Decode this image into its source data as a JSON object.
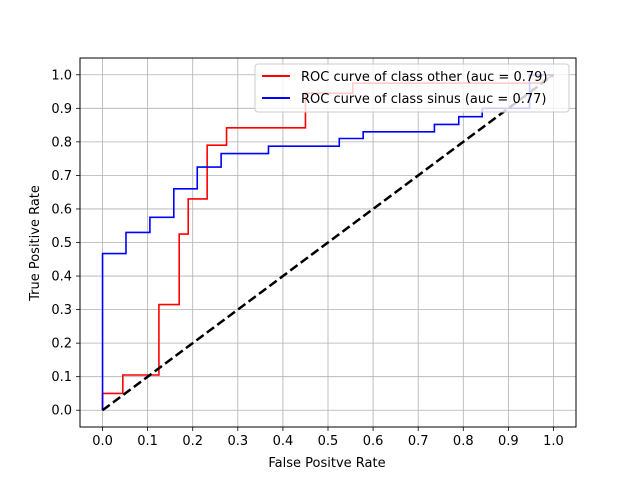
{
  "chart_data": {
    "type": "line",
    "title": "",
    "xlabel": "False Positve Rate",
    "ylabel": "True Positive Rate",
    "xlim": [
      -0.05,
      1.05
    ],
    "ylim": [
      -0.05,
      1.05
    ],
    "xticks": [
      "0.0",
      "0.1",
      "0.2",
      "0.3",
      "0.4",
      "0.5",
      "0.6",
      "0.7",
      "0.8",
      "0.9",
      "1.0"
    ],
    "yticks": [
      "0.0",
      "0.1",
      "0.2",
      "0.3",
      "0.4",
      "0.5",
      "0.6",
      "0.7",
      "0.8",
      "0.9",
      "1.0"
    ],
    "grid": true,
    "legend_position": "top-right",
    "series": [
      {
        "name": "ROC curve of class other (auc = 0.79)",
        "color": "#ff0000",
        "x": [
          0,
          0,
          0.045,
          0.045,
          0.125,
          0.125,
          0.17,
          0.17,
          0.19,
          0.19,
          0.232,
          0.232,
          0.275,
          0.275,
          0.45,
          0.45,
          0.555,
          0.555,
          0.97,
          1.0
        ],
        "y": [
          0,
          0.05,
          0.05,
          0.105,
          0.105,
          0.315,
          0.315,
          0.525,
          0.525,
          0.63,
          0.63,
          0.79,
          0.79,
          0.842,
          0.842,
          0.945,
          0.945,
          0.975,
          0.975,
          1.0
        ]
      },
      {
        "name": "ROC curve of class sinus (auc = 0.77)",
        "color": "#0000ff",
        "x": [
          0,
          0,
          0.052,
          0.052,
          0.105,
          0.105,
          0.158,
          0.158,
          0.21,
          0.21,
          0.263,
          0.263,
          0.368,
          0.368,
          0.525,
          0.525,
          0.578,
          0.578,
          0.736,
          0.736,
          0.79,
          0.79,
          0.842,
          0.842,
          0.947,
          0.947,
          1.0
        ],
        "y": [
          0,
          0.467,
          0.467,
          0.53,
          0.53,
          0.575,
          0.575,
          0.66,
          0.66,
          0.725,
          0.725,
          0.765,
          0.765,
          0.787,
          0.787,
          0.81,
          0.81,
          0.83,
          0.83,
          0.852,
          0.852,
          0.875,
          0.875,
          0.9,
          0.9,
          1.0,
          1.0
        ]
      },
      {
        "color": "#000000",
        "dashed": true,
        "x": [
          0,
          1
        ],
        "y": [
          0,
          1
        ]
      }
    ]
  }
}
